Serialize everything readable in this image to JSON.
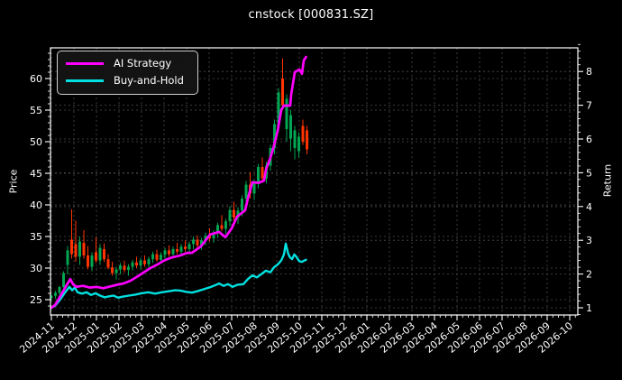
{
  "title": "cnstock [000831.SZ]",
  "colors": {
    "background": "#000000",
    "text": "#ffffff",
    "frame": "#ffffff",
    "grid": "#4d4d4d",
    "candle_up": "#00a651",
    "candle_down": "#ff3300",
    "ai_strategy": "#ff00ff",
    "buy_and_hold": "#00e0e0"
  },
  "legend": [
    {
      "label": "AI Strategy",
      "color": "#ff00ff"
    },
    {
      "label": "Buy-and-Hold",
      "color": "#00e0e0"
    }
  ],
  "chart_data": {
    "type": "candlestick+line",
    "title": "cnstock [000831.SZ]",
    "grid": true,
    "legend_position": "upper-left",
    "left_axis": {
      "label": "Price",
      "ticks": [
        25,
        30,
        35,
        40,
        45,
        50,
        55,
        60
      ],
      "range": [
        22.4,
        64.9
      ]
    },
    "right_axis": {
      "label": "Return",
      "ticks": [
        1,
        2,
        3,
        4,
        5,
        6,
        7,
        8
      ],
      "range": [
        0.78,
        8.92
      ]
    },
    "x_axis": {
      "labels": [
        "2024-11",
        "2024-12",
        "2025-01",
        "2025-02",
        "2025-03",
        "2025-04",
        "2025-05",
        "2025-06",
        "2025-07",
        "2025-08",
        "2025-09",
        "2025-10",
        "2025-11",
        "2025-12",
        "2026-01",
        "2026-02",
        "2026-03",
        "2026-04",
        "2026-05",
        "2026-06",
        "2026-07",
        "2026-08",
        "2026-09",
        "2026-10"
      ],
      "data_end_label": "2025-11"
    },
    "candles": {
      "axis": "price",
      "step_months": 0.18,
      "ohlc": [
        [
          25.3,
          25.9,
          24.9,
          25.6
        ],
        [
          25.6,
          26.4,
          25.2,
          26.1
        ],
        [
          26.1,
          27.2,
          25.8,
          27.0
        ],
        [
          27.0,
          29.5,
          26.8,
          29.2
        ],
        [
          30.5,
          33.5,
          29.0,
          32.8
        ],
        [
          34.5,
          39.3,
          31.5,
          32.2
        ],
        [
          33.8,
          37.5,
          31.0,
          31.8
        ],
        [
          31.8,
          35.0,
          30.5,
          34.2
        ],
        [
          34.0,
          36.0,
          31.5,
          32.0
        ],
        [
          32.0,
          33.5,
          29.8,
          30.2
        ],
        [
          30.2,
          32.5,
          29.5,
          32.0
        ],
        [
          32.5,
          34.9,
          30.8,
          31.2
        ],
        [
          31.2,
          33.8,
          30.5,
          33.2
        ],
        [
          33.0,
          33.9,
          31.0,
          31.4
        ],
        [
          31.4,
          32.2,
          29.8,
          30.1
        ],
        [
          30.1,
          31.0,
          28.8,
          29.2
        ],
        [
          29.2,
          30.2,
          28.2,
          29.8
        ],
        [
          29.8,
          30.8,
          29.0,
          30.4
        ],
        [
          30.4,
          31.2,
          29.3,
          29.7
        ],
        [
          29.7,
          30.6,
          28.8,
          30.2
        ],
        [
          30.2,
          31.3,
          29.6,
          30.9
        ],
        [
          30.9,
          31.8,
          30.0,
          30.4
        ],
        [
          30.4,
          31.6,
          29.8,
          31.2
        ],
        [
          31.2,
          32.0,
          30.2,
          30.6
        ],
        [
          30.6,
          31.8,
          30.0,
          31.4
        ],
        [
          31.4,
          32.6,
          30.8,
          32.2
        ],
        [
          32.2,
          32.9,
          31.0,
          31.3
        ],
        [
          31.3,
          32.5,
          30.7,
          32.1
        ],
        [
          32.1,
          33.2,
          31.4,
          32.8
        ],
        [
          32.8,
          33.6,
          31.8,
          32.2
        ],
        [
          32.2,
          33.4,
          31.6,
          33.0
        ],
        [
          33.0,
          34.0,
          32.2,
          32.6
        ],
        [
          32.6,
          33.8,
          32.0,
          33.4
        ],
        [
          33.4,
          34.4,
          32.6,
          33.0
        ],
        [
          33.0,
          34.2,
          32.4,
          33.8
        ],
        [
          33.8,
          35.0,
          33.0,
          34.5
        ],
        [
          34.5,
          35.2,
          33.2,
          33.6
        ],
        [
          33.6,
          34.8,
          32.9,
          34.4
        ],
        [
          34.4,
          35.6,
          33.6,
          35.1
        ],
        [
          35.1,
          36.3,
          34.2,
          34.7
        ],
        [
          34.7,
          36.0,
          34.0,
          35.6
        ],
        [
          35.6,
          37.2,
          34.8,
          36.8
        ],
        [
          36.8,
          38.4,
          35.8,
          36.2
        ],
        [
          36.2,
          37.8,
          35.4,
          37.4
        ],
        [
          37.4,
          39.8,
          36.6,
          39.2
        ],
        [
          39.2,
          40.5,
          37.5,
          38.0
        ],
        [
          38.0,
          39.6,
          37.0,
          39.1
        ],
        [
          39.1,
          41.5,
          38.2,
          41.0
        ],
        [
          41.0,
          43.8,
          40.2,
          43.2
        ],
        [
          43.2,
          45.2,
          41.0,
          41.8
        ],
        [
          41.8,
          44.0,
          40.8,
          43.5
        ],
        [
          43.5,
          46.5,
          42.6,
          46.0
        ],
        [
          46.0,
          47.5,
          43.5,
          44.2
        ],
        [
          44.2,
          46.8,
          43.4,
          46.2
        ],
        [
          46.2,
          49.5,
          45.4,
          49.0
        ],
        [
          49.0,
          53.5,
          48.0,
          52.8
        ],
        [
          52.8,
          58.5,
          51.5,
          57.8
        ],
        [
          60.0,
          63.2,
          55.0,
          55.8
        ],
        [
          52.0,
          57.5,
          50.0,
          56.8
        ],
        [
          50.5,
          55.0,
          48.5,
          54.2
        ],
        [
          49.0,
          52.5,
          47.2,
          51.8
        ],
        [
          48.5,
          51.5,
          47.5,
          50.8
        ],
        [
          52.5,
          53.5,
          49.5,
          50.0
        ],
        [
          51.8,
          52.5,
          48.0,
          48.8
        ]
      ]
    },
    "series": [
      {
        "name": "AI Strategy",
        "axis": "return",
        "color": "#ff00ff",
        "width": 2.7,
        "points": [
          [
            0,
            1.0
          ],
          [
            0.16,
            1.08
          ],
          [
            0.4,
            1.35
          ],
          [
            0.72,
            1.72
          ],
          [
            0.84,
            1.85
          ],
          [
            0.96,
            1.7
          ],
          [
            1.1,
            1.62
          ],
          [
            1.4,
            1.65
          ],
          [
            1.7,
            1.6
          ],
          [
            2.0,
            1.62
          ],
          [
            2.3,
            1.58
          ],
          [
            2.6,
            1.63
          ],
          [
            2.9,
            1.68
          ],
          [
            3.2,
            1.72
          ],
          [
            3.5,
            1.8
          ],
          [
            3.8,
            1.92
          ],
          [
            4.1,
            2.05
          ],
          [
            4.4,
            2.18
          ],
          [
            4.7,
            2.28
          ],
          [
            5.0,
            2.4
          ],
          [
            5.3,
            2.48
          ],
          [
            5.72,
            2.55
          ],
          [
            6.0,
            2.62
          ],
          [
            6.24,
            2.63
          ],
          [
            6.64,
            2.82
          ],
          [
            7.04,
            3.17
          ],
          [
            7.44,
            3.25
          ],
          [
            7.72,
            3.09
          ],
          [
            8.0,
            3.35
          ],
          [
            8.24,
            3.7
          ],
          [
            8.6,
            3.89
          ],
          [
            8.72,
            4.24
          ],
          [
            8.92,
            4.72
          ],
          [
            9.2,
            4.7
          ],
          [
            9.44,
            4.77
          ],
          [
            9.52,
            5.09
          ],
          [
            9.72,
            5.45
          ],
          [
            9.84,
            5.71
          ],
          [
            10.04,
            6.24
          ],
          [
            10.2,
            6.86
          ],
          [
            10.32,
            6.99
          ],
          [
            10.6,
            6.99
          ],
          [
            10.64,
            7.31
          ],
          [
            10.8,
            7.98
          ],
          [
            11.0,
            8.06
          ],
          [
            11.12,
            7.93
          ],
          [
            11.2,
            8.33
          ],
          [
            11.3,
            8.43
          ]
        ]
      },
      {
        "name": "Buy-and-Hold",
        "axis": "return",
        "color": "#00e0e0",
        "width": 2.4,
        "points": [
          [
            0,
            1.0
          ],
          [
            0.16,
            1.06
          ],
          [
            0.4,
            1.25
          ],
          [
            0.6,
            1.45
          ],
          [
            0.8,
            1.62
          ],
          [
            0.92,
            1.52
          ],
          [
            1.04,
            1.6
          ],
          [
            1.16,
            1.46
          ],
          [
            1.36,
            1.42
          ],
          [
            1.56,
            1.46
          ],
          [
            1.76,
            1.38
          ],
          [
            1.96,
            1.43
          ],
          [
            2.16,
            1.36
          ],
          [
            2.36,
            1.31
          ],
          [
            2.56,
            1.34
          ],
          [
            2.76,
            1.36
          ],
          [
            2.96,
            1.3
          ],
          [
            3.16,
            1.33
          ],
          [
            3.44,
            1.36
          ],
          [
            3.72,
            1.39
          ],
          [
            4.0,
            1.43
          ],
          [
            4.3,
            1.46
          ],
          [
            4.6,
            1.42
          ],
          [
            4.9,
            1.46
          ],
          [
            5.2,
            1.49
          ],
          [
            5.5,
            1.52
          ],
          [
            5.72,
            1.51
          ],
          [
            6.0,
            1.47
          ],
          [
            6.24,
            1.45
          ],
          [
            6.52,
            1.5
          ],
          [
            6.8,
            1.56
          ],
          [
            7.04,
            1.61
          ],
          [
            7.24,
            1.66
          ],
          [
            7.44,
            1.72
          ],
          [
            7.64,
            1.65
          ],
          [
            7.84,
            1.7
          ],
          [
            8.04,
            1.62
          ],
          [
            8.24,
            1.68
          ],
          [
            8.52,
            1.7
          ],
          [
            8.72,
            1.85
          ],
          [
            8.92,
            1.96
          ],
          [
            9.12,
            1.9
          ],
          [
            9.32,
            2.0
          ],
          [
            9.52,
            2.1
          ],
          [
            9.72,
            2.05
          ],
          [
            9.88,
            2.2
          ],
          [
            10.04,
            2.28
          ],
          [
            10.2,
            2.4
          ],
          [
            10.32,
            2.58
          ],
          [
            10.4,
            2.9
          ],
          [
            10.5,
            2.62
          ],
          [
            10.58,
            2.5
          ],
          [
            10.68,
            2.44
          ],
          [
            10.78,
            2.58
          ],
          [
            10.88,
            2.5
          ],
          [
            11.0,
            2.38
          ],
          [
            11.12,
            2.36
          ],
          [
            11.22,
            2.4
          ],
          [
            11.3,
            2.42
          ]
        ]
      }
    ]
  }
}
